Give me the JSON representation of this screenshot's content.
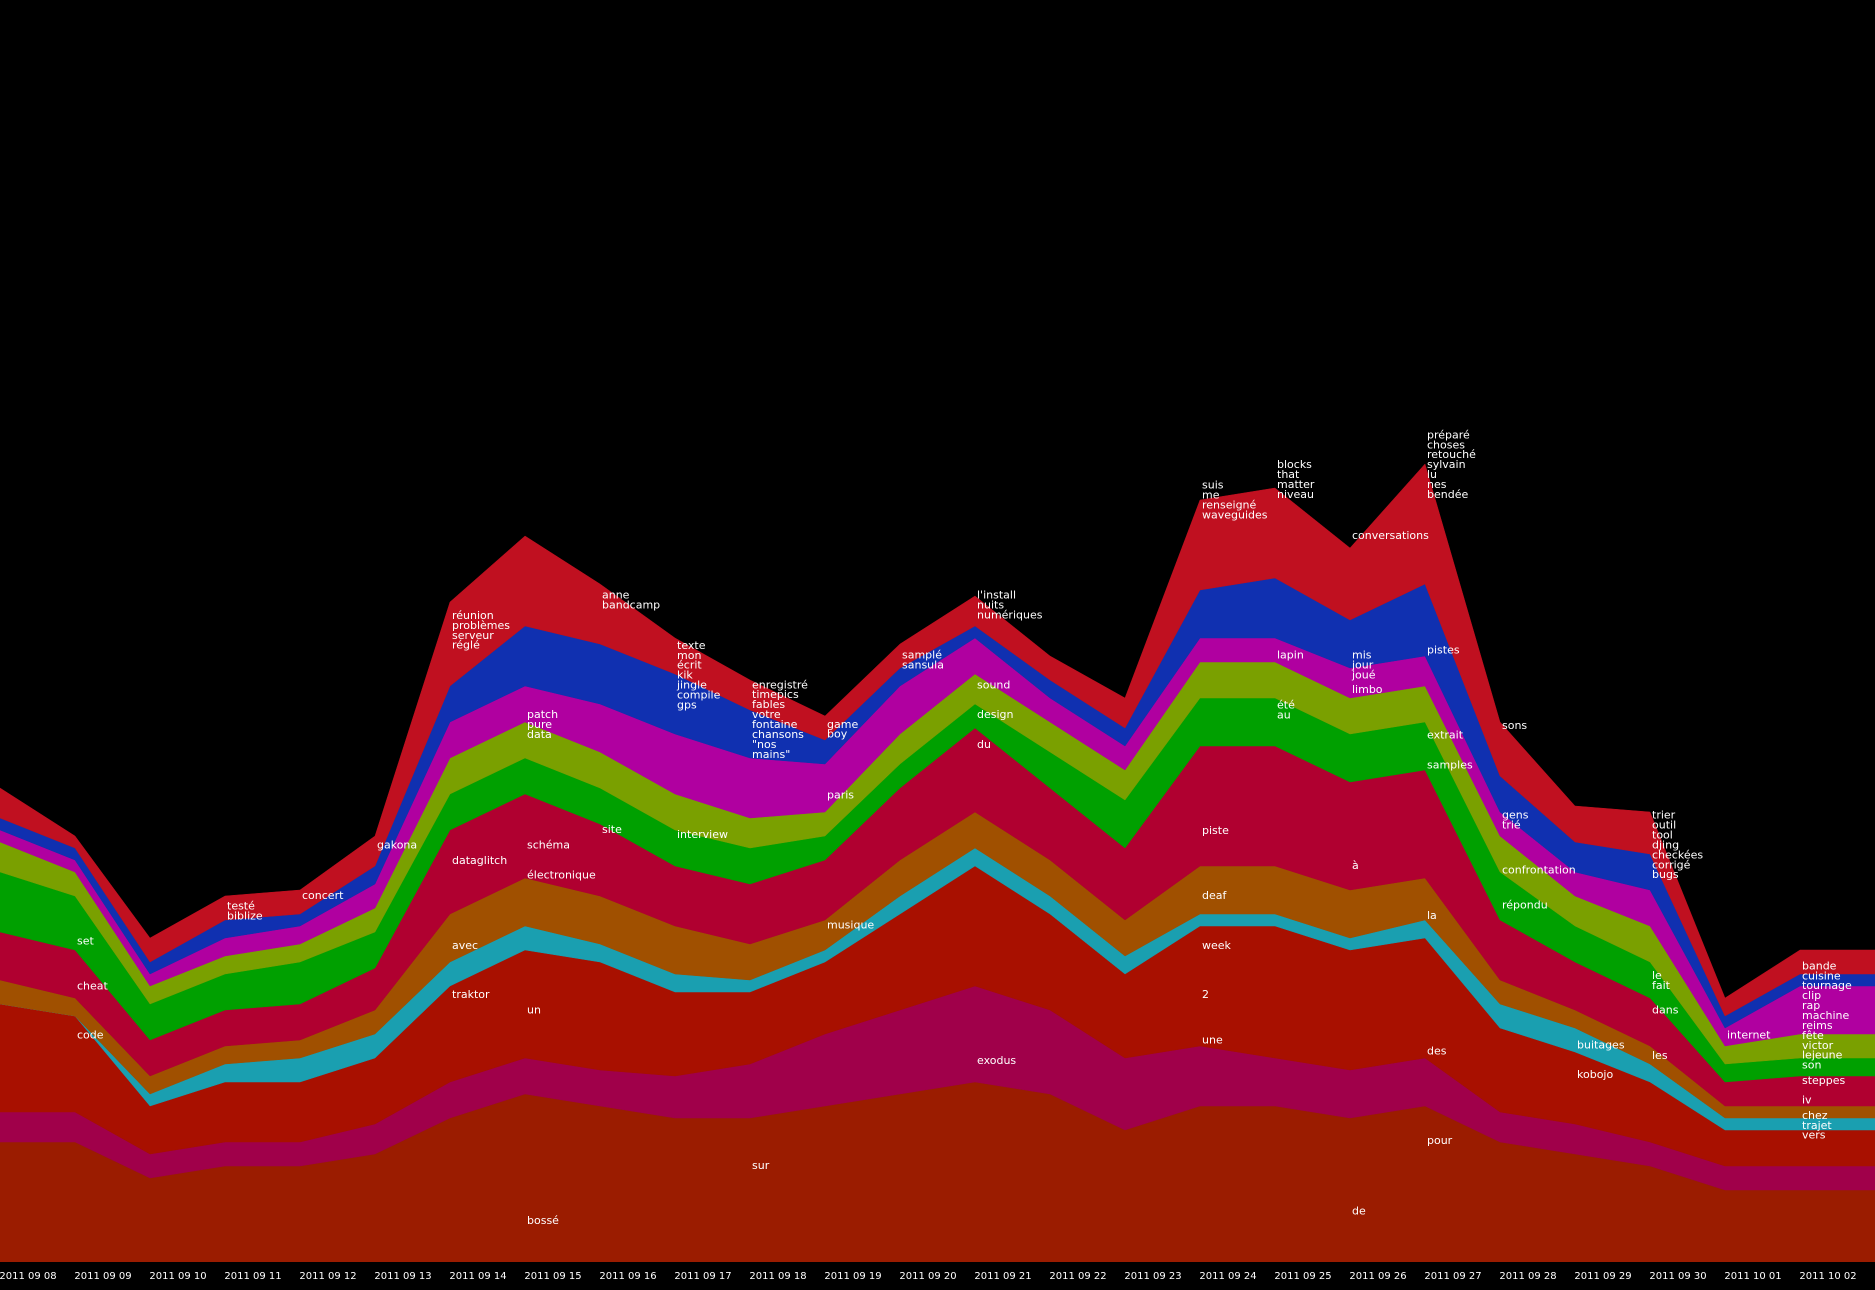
{
  "chart_data": {
    "type": "stream",
    "categories": [
      "2011 09 08",
      "2011 09 09",
      "2011 09 10",
      "2011 09 11",
      "2011 09 12",
      "2011 09 13",
      "2011 09 14",
      "2011 09 15",
      "2011 09 16",
      "2011 09 17",
      "2011 09 18",
      "2011 09 19",
      "2011 09 20",
      "2011 09 21",
      "2011 09 22",
      "2011 09 23",
      "2011 09 24",
      "2011 09 25",
      "2011 09 26",
      "2011 09 27",
      "2011 09 28",
      "2011 09 29",
      "2011 09 30",
      "2011 10 01",
      "2011 10 02"
    ],
    "ylim": [
      0,
      145
    ],
    "series": [
      {
        "color": "#9b1c00",
        "values": [
          20,
          20,
          14,
          16,
          16,
          18,
          24,
          28,
          26,
          24,
          24,
          26,
          28,
          30,
          28,
          22,
          26,
          26,
          24,
          26,
          20,
          18,
          16,
          12,
          12
        ]
      },
      {
        "color": "#a0004a",
        "values": [
          5,
          5,
          4,
          4,
          4,
          5,
          6,
          6,
          6,
          7,
          9,
          12,
          14,
          16,
          14,
          12,
          10,
          8,
          8,
          8,
          5,
          5,
          4,
          4,
          4
        ]
      },
      {
        "color": "#a81000",
        "values": [
          18,
          16,
          8,
          10,
          10,
          11,
          16,
          18,
          18,
          14,
          12,
          12,
          16,
          20,
          16,
          14,
          20,
          22,
          20,
          20,
          14,
          12,
          10,
          6,
          6
        ]
      },
      {
        "color": "#1a9fb0",
        "values": [
          0,
          0,
          2,
          3,
          4,
          4,
          4,
          4,
          3,
          3,
          2,
          2,
          3,
          3,
          3,
          3,
          2,
          2,
          2,
          3,
          4,
          4,
          3,
          2,
          2
        ]
      },
      {
        "color": "#a05000",
        "values": [
          4,
          3,
          3,
          3,
          3,
          4,
          8,
          8,
          8,
          8,
          6,
          5,
          6,
          6,
          6,
          6,
          8,
          8,
          8,
          7,
          4,
          3,
          3,
          2,
          2
        ]
      },
      {
        "color": "#b00030",
        "values": [
          8,
          8,
          6,
          6,
          6,
          7,
          14,
          14,
          12,
          10,
          10,
          10,
          12,
          14,
          12,
          12,
          20,
          20,
          18,
          18,
          10,
          8,
          8,
          4,
          5
        ]
      },
      {
        "color": "#00a000",
        "values": [
          10,
          9,
          6,
          6,
          7,
          6,
          6,
          6,
          6,
          6,
          6,
          4,
          4,
          4,
          6,
          8,
          8,
          8,
          8,
          8,
          8,
          6,
          6,
          3,
          3
        ]
      },
      {
        "color": "#7aa000",
        "values": [
          5,
          4,
          3,
          3,
          3,
          4,
          6,
          6,
          6,
          6,
          5,
          4,
          5,
          5,
          5,
          5,
          6,
          6,
          6,
          6,
          6,
          5,
          6,
          3,
          4
        ]
      },
      {
        "color": "#b000a0",
        "values": [
          2,
          2,
          2,
          3,
          3,
          4,
          6,
          6,
          8,
          10,
          10,
          8,
          8,
          6,
          4,
          4,
          4,
          4,
          5,
          5,
          4,
          4,
          6,
          3,
          8
        ]
      },
      {
        "color": "#1030b0",
        "values": [
          2,
          2,
          2,
          3,
          2,
          3,
          6,
          10,
          10,
          10,
          8,
          4,
          3,
          2,
          3,
          3,
          8,
          10,
          8,
          12,
          6,
          5,
          6,
          2,
          2
        ]
      },
      {
        "color": "#c01020",
        "values": [
          5,
          2,
          4,
          4,
          4,
          5,
          14,
          15,
          10,
          6,
          5,
          4,
          4,
          5,
          4,
          5,
          15,
          15,
          12,
          20,
          9,
          6,
          7,
          3,
          4
        ]
      }
    ],
    "words": [
      "set",
      "cheat",
      "code",
      "testé",
      "biblize",
      "concert",
      "gakona",
      "réunion",
      "problèmes",
      "serveur",
      "réglé",
      "dataglitch",
      "avec",
      "traktor",
      "patch",
      "pure",
      "data",
      "schéma",
      "électronique",
      "un",
      "bossé",
      "anne",
      "bandcamp",
      "site",
      "texte",
      "mon",
      "écrit",
      "kik",
      "jingle",
      "compile",
      "gps",
      "interview",
      "enregistré",
      "timepics",
      "fables",
      "votre",
      "fontaine",
      "chansons",
      "\"nos",
      "mains\"",
      "sur",
      "game",
      "boy",
      "paris",
      "musique",
      "samplé",
      "sansula",
      "l'install",
      "nuits",
      "numériques",
      "sound",
      "design",
      "du",
      "exodus",
      "suis",
      "me",
      "renseigné",
      "waveguides",
      "piste",
      "deaf",
      "week",
      "2",
      "une",
      "blocks",
      "that",
      "matter",
      "niveau",
      "lapin",
      "été",
      "au",
      "conversations",
      "mis",
      "jour",
      "joué",
      "limbo",
      "à",
      "de",
      "préparé",
      "choses",
      "retouché",
      "sylvain",
      "lu",
      "nes",
      "bendée",
      "pistes",
      "extrait",
      "samples",
      "la",
      "des",
      "pour",
      "sons",
      "gens",
      "trié",
      "confrontation",
      "répondu",
      "buitages",
      "kobojo",
      "trier",
      "outil",
      "tool",
      "djing",
      "checkées",
      "corrigé",
      "bugs",
      "le",
      "fait",
      "dans",
      "les",
      "internet",
      "bande",
      "cuisine",
      "tournage",
      "clip",
      "rap",
      "machine",
      "reims",
      "fête",
      "victor",
      "lejeune",
      "son",
      "steppes",
      "iv",
      "chez",
      "trajet",
      "vers"
    ]
  }
}
